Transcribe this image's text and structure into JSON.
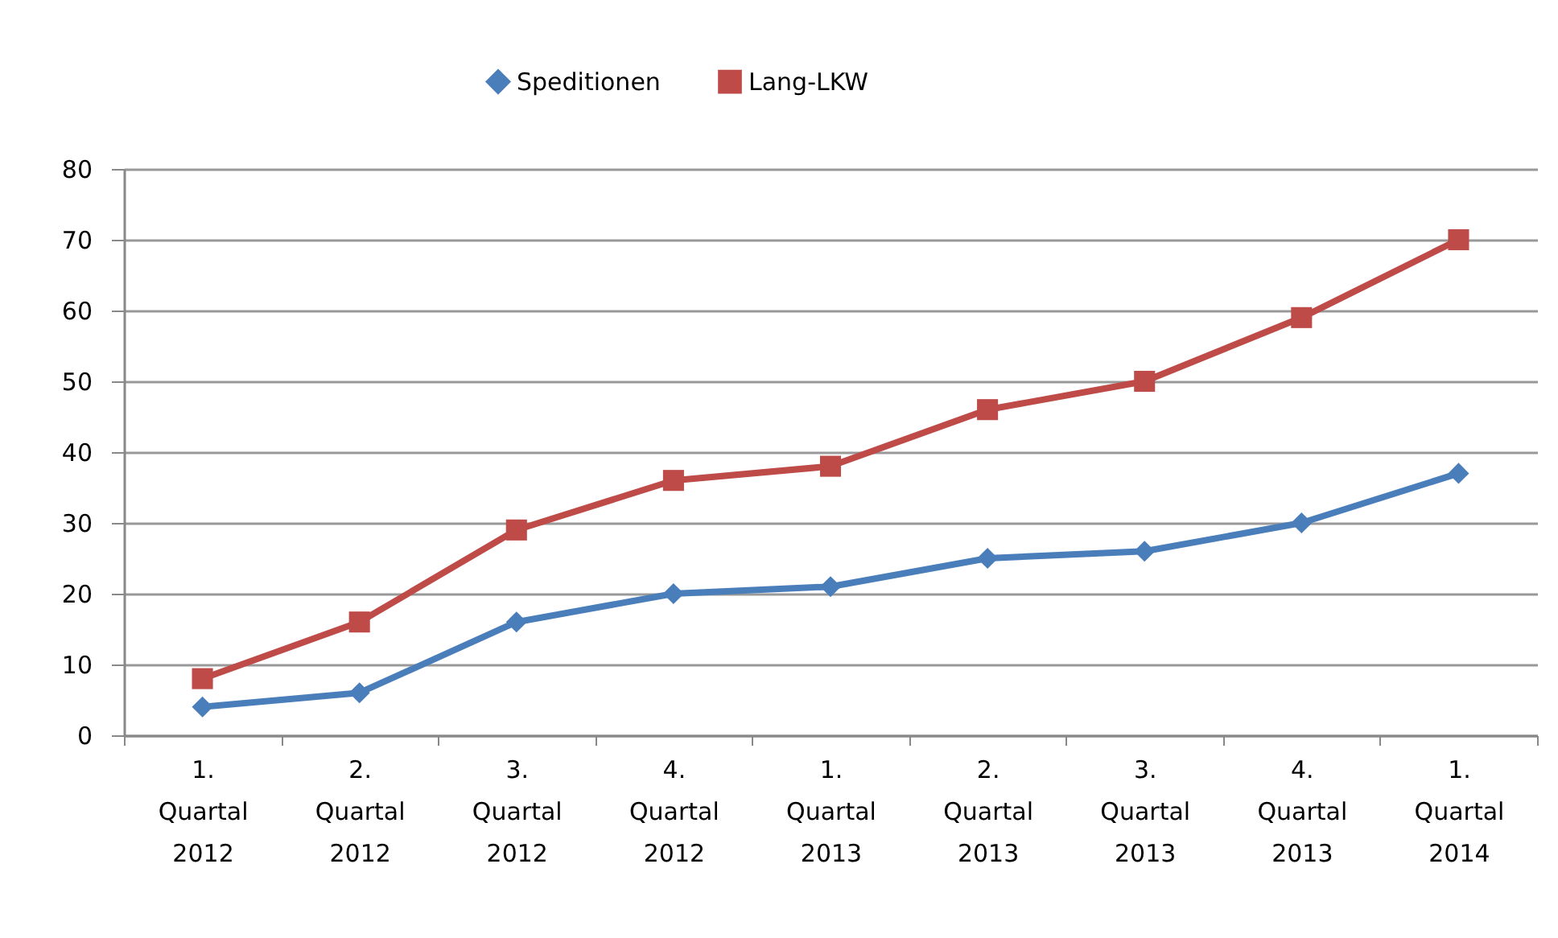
{
  "chart_data": {
    "type": "line",
    "categories": [
      "1. Quartal 2012",
      "2. Quartal 2012",
      "3. Quartal 2012",
      "4. Quartal 2012",
      "1. Quartal 2013",
      "2. Quartal 2013",
      "3. Quartal 2013",
      "4. Quartal 2013",
      "1. Quartal 2014"
    ],
    "series": [
      {
        "name": "Speditionen",
        "color": "#4a7ebb",
        "marker": "diamond",
        "values": [
          4,
          6,
          16,
          20,
          21,
          25,
          26,
          30,
          37
        ]
      },
      {
        "name": "Lang-LKW",
        "color": "#be4b48",
        "marker": "square",
        "values": [
          8,
          16,
          29,
          36,
          38,
          46,
          50,
          59,
          70
        ]
      }
    ],
    "ylim": [
      0,
      80
    ],
    "yticks": [
      0,
      10,
      20,
      30,
      40,
      50,
      60,
      70,
      80
    ],
    "grid": "y",
    "legend": "top"
  }
}
